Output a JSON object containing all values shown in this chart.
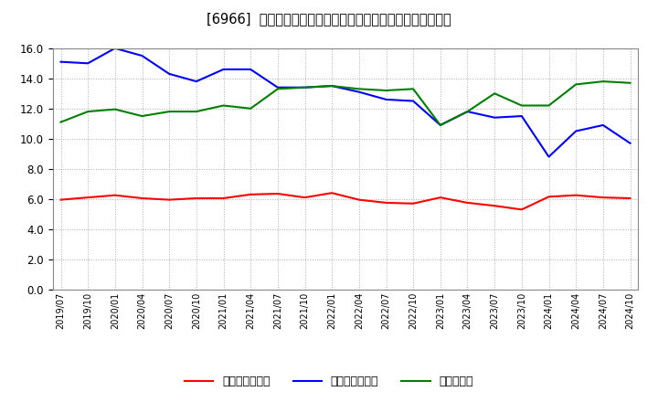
{
  "title": "[6966]  売上債権回転率、買入債務回転率、在庫回転率の推移",
  "x_labels": [
    "2019/07",
    "2019/10",
    "2020/01",
    "2020/04",
    "2020/07",
    "2020/10",
    "2021/01",
    "2021/04",
    "2021/07",
    "2021/10",
    "2022/01",
    "2022/04",
    "2022/07",
    "2022/10",
    "2023/01",
    "2023/04",
    "2023/07",
    "2023/10",
    "2024/01",
    "2024/04",
    "2024/07",
    "2024/10"
  ],
  "series_order": [
    "売上債権回転率",
    "買入債務回転率",
    "在庫回転率"
  ],
  "series": {
    "売上債権回転率": {
      "color": "#ff0000",
      "values": [
        5.95,
        6.1,
        6.25,
        6.05,
        5.95,
        6.05,
        6.05,
        6.3,
        6.35,
        6.1,
        6.4,
        5.95,
        5.75,
        5.7,
        6.1,
        5.75,
        5.55,
        5.3,
        6.15,
        6.25,
        6.1,
        6.05
      ]
    },
    "買入債務回転率": {
      "color": "#0000ff",
      "values": [
        15.1,
        15.0,
        16.0,
        15.5,
        14.3,
        13.8,
        14.6,
        14.6,
        13.4,
        13.4,
        13.5,
        13.1,
        12.6,
        12.5,
        10.9,
        11.8,
        11.4,
        11.5,
        8.8,
        10.5,
        10.9,
        9.7
      ]
    },
    "在庫回転率": {
      "color": "#008000",
      "values": [
        11.1,
        11.8,
        11.95,
        11.5,
        11.8,
        11.8,
        12.2,
        12.0,
        13.3,
        13.4,
        13.5,
        13.3,
        13.2,
        13.3,
        10.9,
        11.8,
        13.0,
        12.2,
        12.2,
        13.6,
        13.8,
        13.7
      ]
    }
  },
  "ylim": [
    0.0,
    16.0
  ],
  "yticks": [
    0.0,
    2.0,
    4.0,
    6.0,
    8.0,
    10.0,
    12.0,
    14.0,
    16.0
  ],
  "background_color": "#ffffff",
  "grid_color": "#aaaaaa",
  "title_fontsize": 10.5
}
